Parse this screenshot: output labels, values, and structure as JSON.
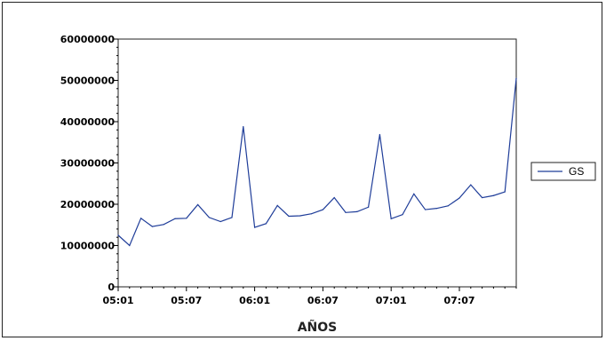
{
  "chart_data": {
    "type": "line",
    "title": "",
    "xlabel": "AÑOS",
    "ylabel": "",
    "x_ticks": [
      "05:01",
      "05:07",
      "06:01",
      "06:07",
      "07:01",
      "07:07"
    ],
    "y_ticks": [
      "0",
      "10000000",
      "20000000",
      "30000000",
      "40000000",
      "50000000",
      "60000000"
    ],
    "ylim": [
      0,
      60000000
    ],
    "x": [
      "05:01",
      "05:02",
      "05:03",
      "05:04",
      "05:05",
      "05:06",
      "05:07",
      "05:08",
      "05:09",
      "05:10",
      "05:11",
      "05:12",
      "06:01",
      "06:02",
      "06:03",
      "06:04",
      "06:05",
      "06:06",
      "06:07",
      "06:08",
      "06:09",
      "06:10",
      "06:11",
      "06:12",
      "07:01",
      "07:02",
      "07:03",
      "07:04",
      "07:05",
      "07:06",
      "07:07",
      "07:08",
      "07:09",
      "07:10",
      "07:11",
      "07:12"
    ],
    "series": [
      {
        "name": "GS",
        "color": "#1f3d99",
        "values": [
          12500000,
          10000000,
          16600000,
          14600000,
          15100000,
          16500000,
          16600000,
          19900000,
          16800000,
          15800000,
          16800000,
          38800000,
          14400000,
          15300000,
          19700000,
          17100000,
          17200000,
          17700000,
          18700000,
          21600000,
          18000000,
          18200000,
          19300000,
          36900000,
          16500000,
          17500000,
          22500000,
          18700000,
          19000000,
          19600000,
          21500000,
          24700000,
          21600000,
          22100000,
          23000000,
          50500000
        ]
      }
    ],
    "legend_position": "right",
    "grid": false
  }
}
